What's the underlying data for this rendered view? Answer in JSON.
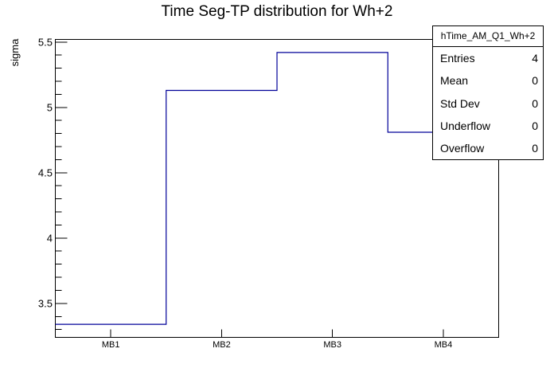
{
  "title": "Time Seg-TP distribution for Wh+2",
  "colors": {
    "histogram_line": "#000099",
    "frame": "#000000",
    "background": "#ffffff",
    "text": "#000000"
  },
  "stats_box": {
    "header": "hTime_AM_Q1_Wh+2",
    "rows": [
      {
        "label": "Entries",
        "value": "4"
      },
      {
        "label": "Mean",
        "value": "0"
      },
      {
        "label": "Std Dev",
        "value": "0"
      },
      {
        "label": "Underflow",
        "value": "0"
      },
      {
        "label": "Overflow",
        "value": "0"
      }
    ]
  },
  "chart_data": {
    "type": "line",
    "style": "step-histogram",
    "title": "Time Seg-TP distribution for Wh+2",
    "xlabel": "",
    "ylabel": "sigma",
    "categories": [
      "MB1",
      "MB2",
      "MB3",
      "MB4"
    ],
    "values": [
      3.34,
      5.13,
      5.42,
      4.81
    ],
    "ylim": [
      3.24,
      5.52
    ],
    "y_major_ticks": [
      3.5,
      4,
      4.5,
      5,
      5.5
    ],
    "y_major_tick_labels": [
      "3.5",
      "4",
      "4.5",
      "5",
      "5.5"
    ],
    "y_minor_tick_step": 0.1,
    "grid": false,
    "legend_position": "none",
    "line_color": "#000099"
  }
}
